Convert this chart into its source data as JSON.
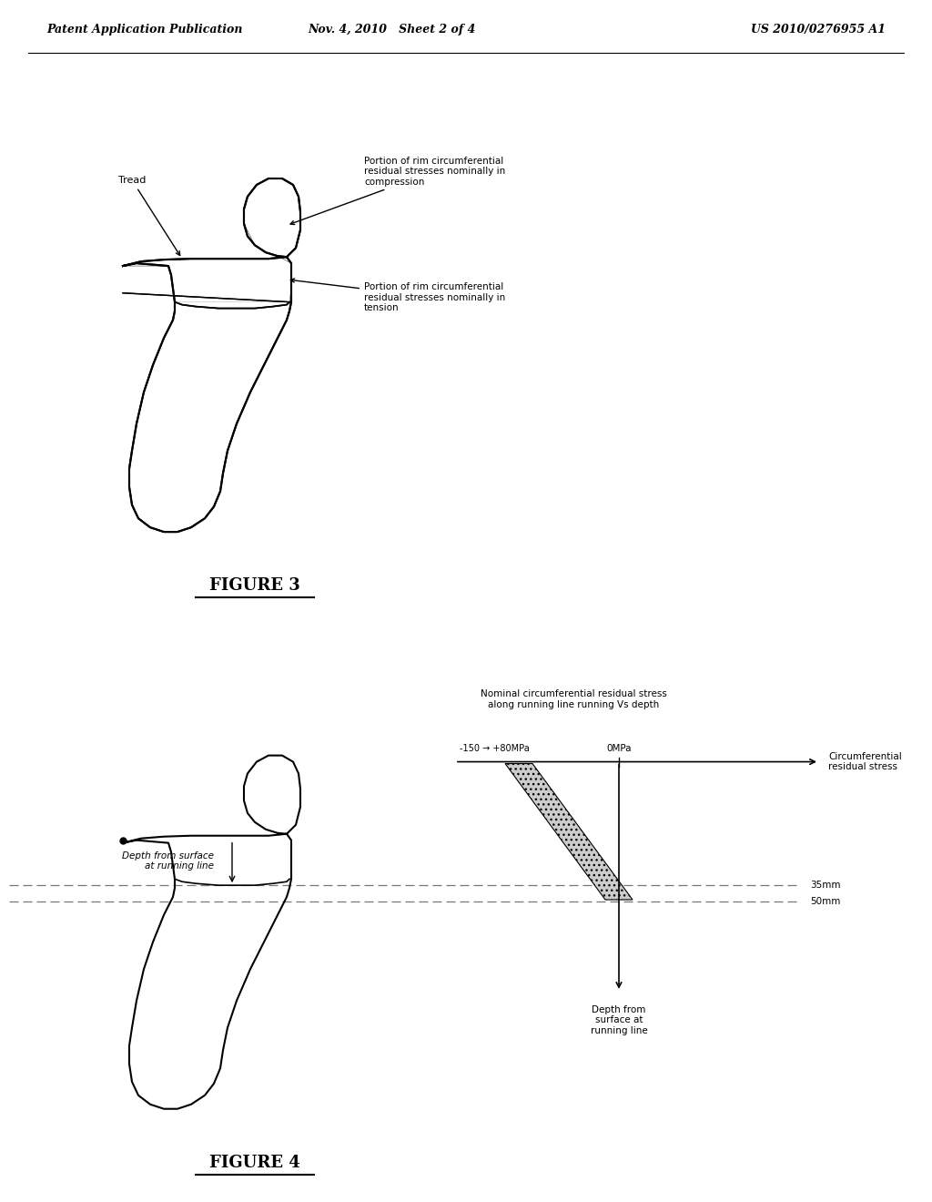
{
  "header_left": "Patent Application Publication",
  "header_mid": "Nov. 4, 2010   Sheet 2 of 4",
  "header_right": "US 2010/0276955 A1",
  "fig3_title": "FIGURE 3",
  "fig4_title": "FIGURE 4",
  "label_tread": "Tread",
  "label_compression": "Portion of rim circumferential\nresidual stresses nominally in\ncompression",
  "label_tension": "Portion of rim circumferential\nresidual stresses nominally in\ntension",
  "label_depth_surface": "Depth from surface\nat running line",
  "label_nominal": "Nominal circumferential residual stress\nalong running line running Vs depth",
  "label_0mpa": "0MPa",
  "label_neg150": "-150 → +80MPa",
  "label_circ_residual": "Circumferential\nresidual stress",
  "label_35mm": "35mm",
  "label_50mm": "50mm",
  "label_depth_from": "Depth from\nsurface at\nrunning line",
  "bg_color": "#ffffff",
  "line_color": "#000000",
  "dashed_color": "#777777"
}
